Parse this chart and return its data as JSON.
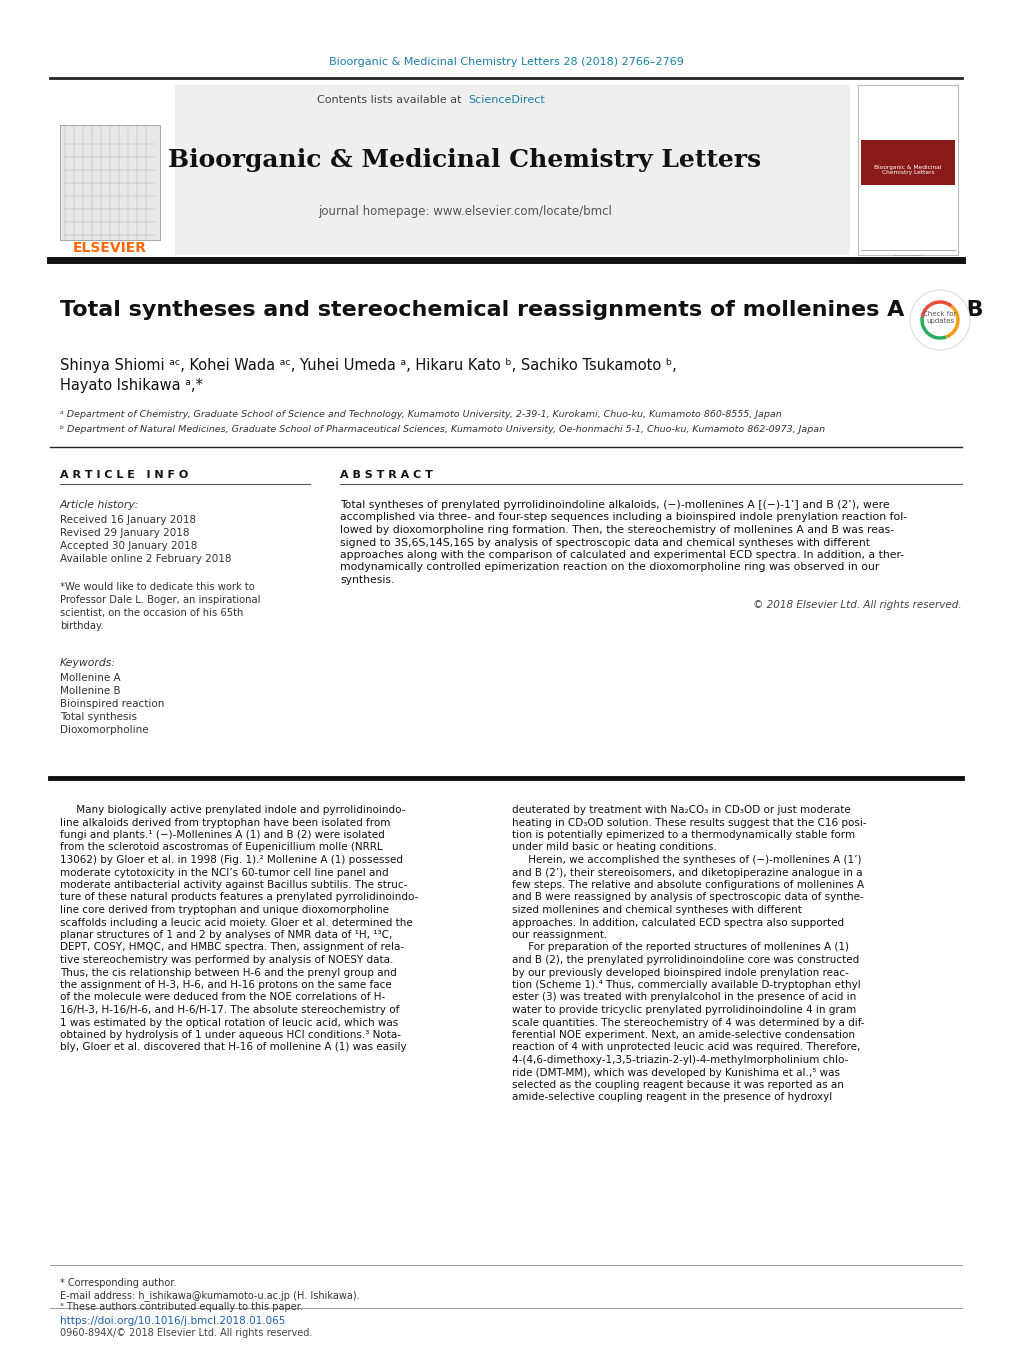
{
  "page_bg": "#ffffff",
  "header_citation": "Bioorganic & Medicinal Chemistry Letters 28 (2018) 2766–2769",
  "header_citation_color": "#1a7fa8",
  "journal_header_bg": "#f0f0f0",
  "journal_name": "Bioorganic & Medicinal Chemistry Letters",
  "journal_homepage": "journal homepage: www.elsevier.com/locate/bmcl",
  "contents_text": "Contents lists available at ",
  "sciencedirect_text": "ScienceDirect",
  "sciencedirect_color": "#1a7fa8",
  "elsevier_color": "#ff6600",
  "title": "Total syntheses and stereochemical reassignments of mollenines A and B",
  "author_line1": "Shinya Shiomi ᵃᶜ, Kohei Wada ᵃᶜ, Yuhei Umeda ᵃ, Hikaru Kato ᵇ, Sachiko Tsukamoto ᵇ,",
  "author_line2": "Hayato Ishikawa ᵃ,*",
  "affil_a": "ᵃ Department of Chemistry, Graduate School of Science and Technology, Kumamoto University, 2-39-1, Kurokami, Chuo-ku, Kumamoto 860-8555, Japan",
  "affil_b": "ᵇ Department of Natural Medicines, Graduate School of Pharmaceutical Sciences, Kumamoto University, Oe-honmachi 5-1, Chuo-ku, Kumamoto 862-0973, Japan",
  "article_info_label": "A R T I C L E   I N F O",
  "abstract_label": "A B S T R A C T",
  "article_history_label": "Article history:",
  "received": "Received 16 January 2018",
  "revised": "Revised 29 January 2018",
  "accepted": "Accepted 30 January 2018",
  "available": "Available online 2 February 2018",
  "dedication_lines": [
    "*We would like to dedicate this work to",
    "Professor Dale L. Boger, an inspirational",
    "scientist, on the occasion of his 65th",
    "birthday."
  ],
  "keywords_label": "Keywords:",
  "keywords": [
    "Mollenine A",
    "Mollenine B",
    "Bioinspired reaction",
    "Total synthesis",
    "Dioxomorpholine"
  ],
  "abstract_text_lines": [
    "Total syntheses of prenylated pyrrolidinoindoline alkaloids, (−)-mollenines A [(−)-1’] and B (2’), were",
    "accomplished via three- and four-step sequences including a bioinspired indole prenylation reaction fol-",
    "lowed by dioxomorpholine ring formation. Then, the stereochemistry of mollenines A and B was reas-",
    "signed to 3S,6S,14S,16S by analysis of spectroscopic data and chemical syntheses with different",
    "approaches along with the comparison of calculated and experimental ECD spectra. In addition, a ther-",
    "modynamically controlled epimerization reaction on the dioxomorpholine ring was observed in our",
    "synthesis."
  ],
  "copyright": "© 2018 Elsevier Ltd. All rights reserved.",
  "body_col1_lines": [
    "     Many biologically active prenylated indole and pyrrolidinoindo-",
    "line alkaloids derived from tryptophan have been isolated from",
    "fungi and plants.¹ (−)-Mollenines A (1) and B (2) were isolated",
    "from the sclerotoid ascostromas of Eupenicillium molle (NRRL",
    "13062) by Gloer et al. in 1998 (Fig. 1).² Mollenine A (1) possessed",
    "moderate cytotoxicity in the NCI’s 60-tumor cell line panel and",
    "moderate antibacterial activity against Bacillus subtilis. The struc-",
    "ture of these natural products features a prenylated pyrrolidinoindo-",
    "line core derived from tryptophan and unique dioxomorpholine",
    "scaffolds including a leucic acid moiety. Gloer et al. determined the",
    "planar structures of 1 and 2 by analyses of NMR data of ¹H, ¹³C,",
    "DEPT, COSY, HMQC, and HMBC spectra. Then, assignment of rela-",
    "tive stereochemistry was performed by analysis of NOESY data.",
    "Thus, the cis relationship between H-6 and the prenyl group and",
    "the assignment of H-3, H-6, and H-16 protons on the same face",
    "of the molecule were deduced from the NOE correlations of H-",
    "16/H-3, H-16/H-6, and H-6/H-17. The absolute stereochemistry of",
    "1 was estimated by the optical rotation of leucic acid, which was",
    "obtained by hydrolysis of 1 under aqueous HCl conditions.³ Nota-",
    "bly, Gloer et al. discovered that H-16 of mollenine A (1) was easily"
  ],
  "body_col2_lines": [
    "deuterated by treatment with Na₂CO₃ in CD₃OD or just moderate",
    "heating in CD₃OD solution. These results suggest that the C16 posi-",
    "tion is potentially epimerized to a thermodynamically stable form",
    "under mild basic or heating conditions.",
    "     Herein, we accomplished the syntheses of (−)-mollenines A (1’)",
    "and B (2’), their stereoisomers, and diketopiperazine analogue in a",
    "few steps. The relative and absolute configurations of mollenines A",
    "and B were reassigned by analysis of spectroscopic data of synthe-",
    "sized mollenines and chemical syntheses with different",
    "approaches. In addition, calculated ECD spectra also supported",
    "our reassignment.",
    "     For preparation of the reported structures of mollenines A (1)",
    "and B (2), the prenylated pyrrolidinoindoline core was constructed",
    "by our previously developed bioinspired indole prenylation reac-",
    "tion (Scheme 1).⁴ Thus, commercially available D-tryptophan ethyl",
    "ester (3) was treated with prenylalcohol in the presence of acid in",
    "water to provide tricyclic prenylated pyrrolidinoindoline 4 in gram",
    "scale quantities. The stereochemistry of 4 was determined by a dif-",
    "ferential NOE experiment. Next, an amide-selective condensation",
    "reaction of 4 with unprotected leucic acid was required. Therefore,",
    "4-(4,6-dimethoxy-1,3,5-triazin-2-yl)-4-methylmorpholinium chlo-",
    "ride (DMT-MM), which was developed by Kunishima et al.,⁵ was",
    "selected as the coupling reagent because it was reported as an",
    "amide-selective coupling reagent in the presence of hydroxyl"
  ],
  "footer_corresponding": "* Corresponding author.",
  "footer_email": "E-mail address: h_ishikawa@kumamoto-u.ac.jp (H. Ishikawa).",
  "footer_equal": "ᵃ These authors contributed equally to this paper.",
  "footer_doi": "https://doi.org/10.1016/j.bmcl.2018.01.065",
  "footer_issn": "0960-894X/© 2018 Elsevier Ltd. All rights reserved.",
  "separator_color": "#000000",
  "thin_line_color": "#555555"
}
